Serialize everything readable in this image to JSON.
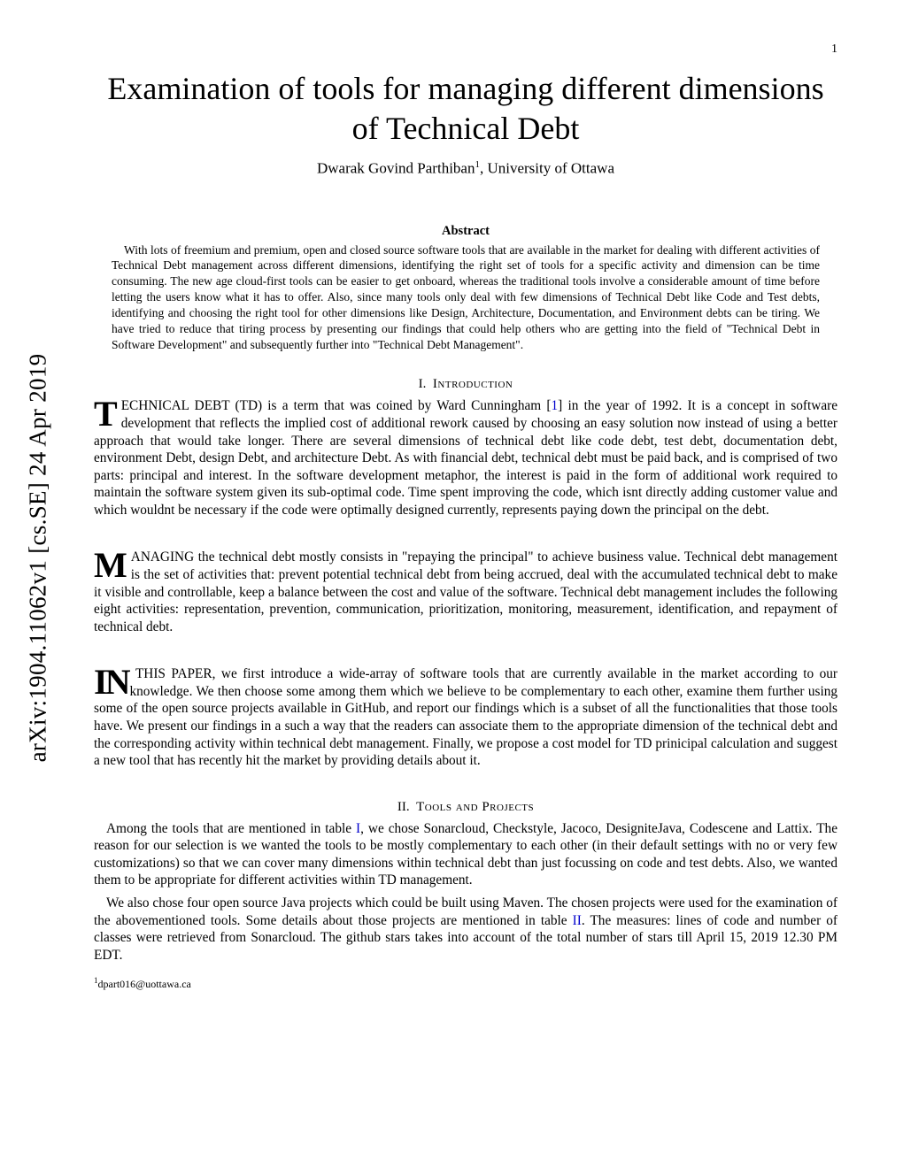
{
  "page_number": "1",
  "arxiv_id": "arXiv:1904.11062v1  [cs.SE]  24 Apr 2019",
  "title": "Examination of tools for managing different dimensions of Technical Debt",
  "author_name": "Dwarak Govind Parthiban",
  "author_affil": ", University of Ottawa",
  "author_sup": "1",
  "abstract_heading": "Abstract",
  "abstract_body": "With lots of freemium and premium, open and closed source software tools that are available in the market for dealing with different activities of Technical Debt management across different dimensions, identifying the right set of tools for a specific activity and dimension can be time consuming. The new age cloud-first tools can be easier to get onboard, whereas the traditional tools involve a considerable amount of time before letting the users know what it has to offer. Also, since many tools only deal with few dimensions of Technical Debt like Code and Test debts, identifying and choosing the right tool for other dimensions like Design, Architecture, Documentation, and Environment debts can be tiring. We have tried to reduce that tiring process by presenting our findings that could help others who are getting into the field of \"Technical Debt in Software Development\" and subsequently further into \"Technical Debt Management\".",
  "section1_num": "I.",
  "section1_title": "Introduction",
  "para1_dropcap": "T",
  "para1_rest": "ECHNICAL DEBT (TD) is a term that was coined by Ward Cunningham [",
  "para1_cite": "1",
  "para1_cont": "] in the year of 1992. It is a concept in software development that reflects the implied cost of additional rework caused by choosing an easy solution now instead of using a better approach that would take longer. There are several dimensions of technical debt like code debt, test debt, documentation debt, environment Debt, design Debt, and architecture Debt. As with financial debt, technical debt must be paid back, and is comprised of two parts: principal and interest. In the software development metaphor, the interest is paid in the form of additional work required to maintain the software system given its sub-optimal code. Time spent improving the code, which isnt directly adding customer value and which wouldnt be necessary if the code were optimally designed currently, represents paying down the principal on the debt.",
  "para2_dropcap": "M",
  "para2_rest": "ANAGING the technical debt mostly consists in \"repaying the principal\" to achieve business value. Technical debt management is the set of activities that: prevent potential technical debt from being accrued, deal with the accumulated technical debt to make it visible and controllable, keep a balance between the cost and value of the software. Technical debt management includes the following eight activities: representation, prevention, communication, prioritization, monitoring, measurement, identification, and repayment of technical debt.",
  "para3_dropcap": "IN",
  "para3_rest": "THIS PAPER, we first introduce a wide-array of software tools that are currently available in the market according to our knowledge. We then choose some among them which we believe to be complementary to each other, examine them further using some of the open source projects available in GitHub, and report our findings which is a subset of all the functionalities that those tools have. We present our findings in a such a way that the readers can associate them to the appropriate dimension of the technical debt and the corresponding activity within technical debt management. Finally, we propose a cost model for TD prinicipal calculation and suggest a new tool that has recently hit the market by providing details about it.",
  "section2_num": "II.",
  "section2_title": "Tools and Projects",
  "para4_a": "Among the tools that are mentioned in table ",
  "para4_ref1": "I",
  "para4_b": ", we chose Sonarcloud, Checkstyle, Jacoco, DesigniteJava, Codescene and Lattix. The reason for our selection is we wanted the tools to be mostly complementary to each other (in their default settings with no or very few customizations) so that we can cover many dimensions within technical debt than just focussing on code and test debts. Also, we wanted them to be appropriate for different activities within TD management.",
  "para5_a": "We also chose four open source Java projects which could be built using Maven. The chosen projects were used for the examination of the abovementioned tools. Some details about those projects are mentioned in table ",
  "para5_ref2": "II",
  "para5_b": ". The measures: lines of code and number of classes were retrieved from Sonarcloud. The github stars takes into account of the total number of stars till April 15, 2019 12.30 PM EDT.",
  "footnote_sup": "1",
  "footnote_text": "dpart016@uottawa.ca"
}
